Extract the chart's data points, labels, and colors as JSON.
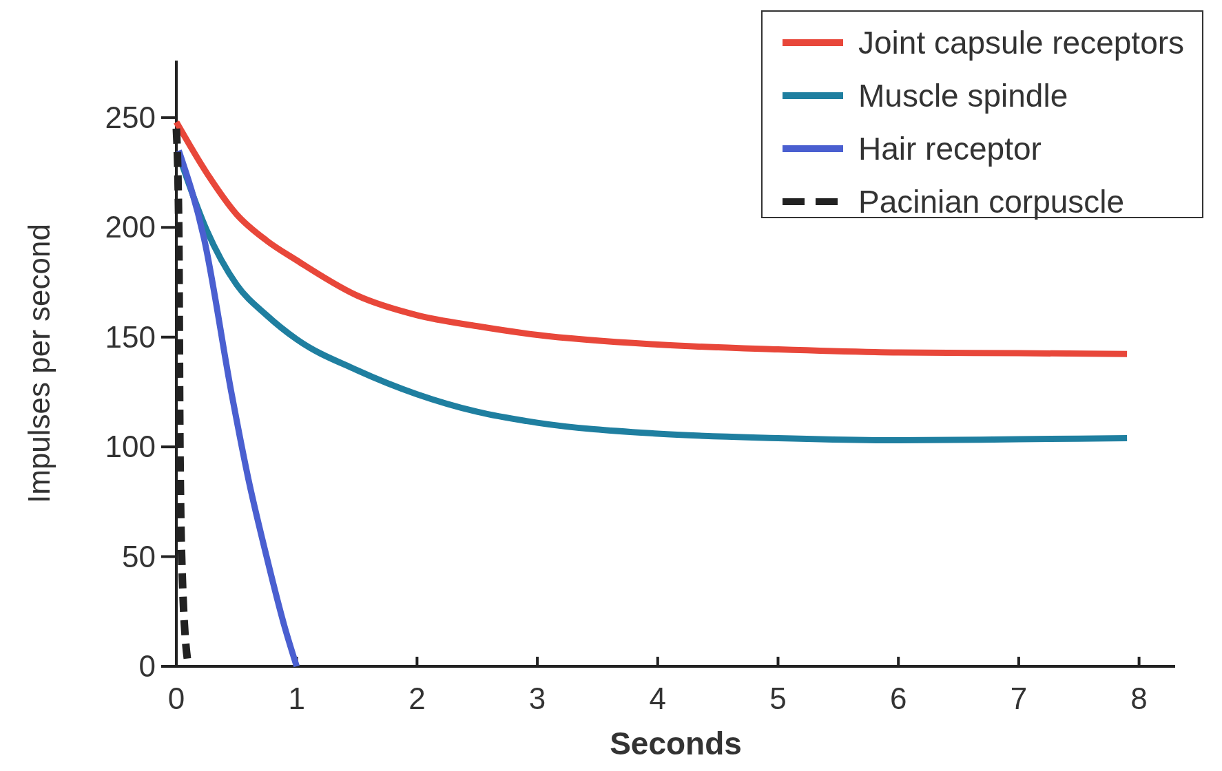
{
  "chart_data": {
    "type": "line",
    "xlabel": "Seconds",
    "ylabel": "Impulses per second",
    "xlim": [
      0,
      8.3
    ],
    "ylim": [
      0,
      276
    ],
    "xticks": [
      0,
      1,
      2,
      3,
      4,
      5,
      6,
      7,
      8
    ],
    "yticks": [
      0,
      50,
      100,
      150,
      200,
      250
    ],
    "legend": "top right",
    "grid": false,
    "series": [
      {
        "name": "Joint capsule receptors",
        "color": "#e8473a",
        "x": [
          0,
          0.25,
          0.5,
          0.75,
          1,
          1.5,
          2,
          2.5,
          3,
          4,
          5,
          6,
          7,
          7.9
        ],
        "values": [
          248,
          225,
          206,
          194,
          185,
          169,
          160,
          155,
          151,
          146.6,
          144.4,
          143,
          142.7,
          142.3
        ]
      },
      {
        "name": "Muscle spindle",
        "color": "#1f7fa0",
        "x": [
          0.02,
          0.25,
          0.5,
          0.75,
          1,
          1.5,
          2,
          2.5,
          3,
          4,
          5,
          6,
          7,
          7.9
        ],
        "values": [
          233,
          199,
          174,
          160,
          149,
          135,
          124,
          116,
          111,
          106,
          104,
          103,
          103.5,
          104
        ]
      },
      {
        "name": "Hair receptor",
        "color": "#4a5fd0",
        "x": [
          0.02,
          0.23,
          0.46,
          0.6,
          0.75,
          0.9,
          1
        ],
        "values": [
          235,
          195,
          124,
          85,
          50,
          18,
          0
        ]
      },
      {
        "name": "Pacinian corpuscle",
        "color": "#222222",
        "line_style": "dashed",
        "x": [
          0,
          0.02,
          0.03,
          0.05,
          0.1
        ],
        "values": [
          245,
          200,
          100,
          40,
          0
        ]
      }
    ]
  }
}
